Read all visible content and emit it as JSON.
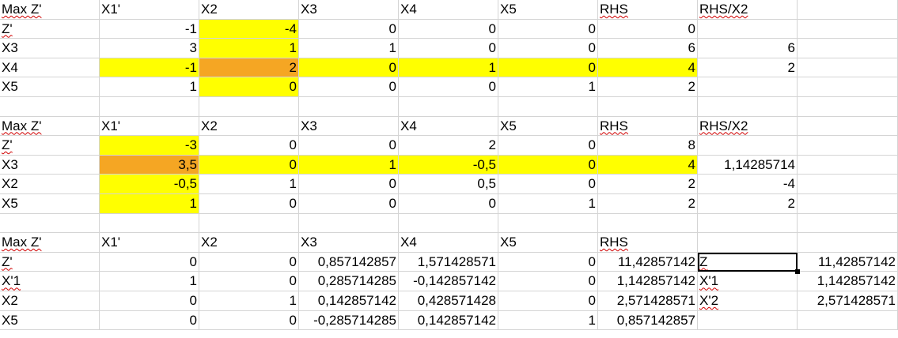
{
  "blocks": [
    {
      "header": [
        "Max Z'",
        "X1'",
        "X2",
        "X3",
        "X4",
        "X5",
        "RHS",
        "RHS/X2",
        ""
      ],
      "rows": [
        [
          "Z'",
          "-1",
          "-4",
          "0",
          "0",
          "0",
          "0",
          "",
          ""
        ],
        [
          "X3",
          "3",
          "1",
          "1",
          "0",
          "0",
          "6",
          "6",
          ""
        ],
        [
          "X4",
          "-1",
          "2",
          "0",
          "1",
          "0",
          "4",
          "2",
          ""
        ],
        [
          "X5",
          "1",
          "0",
          "0",
          "0",
          "1",
          "2",
          "",
          ""
        ]
      ]
    },
    {
      "header": [
        "Max Z'",
        "X1'",
        "X2",
        "X3",
        "X4",
        "X5",
        "RHS",
        "RHS/X2",
        ""
      ],
      "rows": [
        [
          "Z'",
          "-3",
          "0",
          "0",
          "2",
          "0",
          "8",
          "",
          ""
        ],
        [
          "X3",
          "3,5",
          "0",
          "1",
          "-0,5",
          "0",
          "4",
          "1,14285714",
          ""
        ],
        [
          "X2",
          "-0,5",
          "1",
          "0",
          "0,5",
          "0",
          "2",
          "-4",
          ""
        ],
        [
          "X5",
          "1",
          "0",
          "0",
          "0",
          "1",
          "2",
          "2",
          ""
        ]
      ]
    },
    {
      "header": [
        "Max Z'",
        "X1'",
        "X2",
        "X3",
        "X4",
        "X5",
        "RHS",
        "",
        ""
      ],
      "rows": [
        [
          "Z'",
          "0",
          "0",
          "0,857142857",
          "1,571428571",
          "0",
          "11,42857142",
          "Z",
          "11,42857142"
        ],
        [
          "X'1",
          "1",
          "0",
          "0,285714285",
          "-0,142857142",
          "0",
          "1,142857142",
          "X'1",
          "1,142857142"
        ],
        [
          "X2",
          "0",
          "1",
          "0,142857142",
          "0,428571428",
          "0",
          "2,571428571",
          "X'2",
          "2,571428571"
        ],
        [
          "X5",
          "0",
          "0",
          "-0,285714285",
          "0,142857142",
          "1",
          "0,857142857",
          "",
          ""
        ]
      ]
    }
  ],
  "colors": {
    "highlight": "#ffff00",
    "pivot": "#f5a623",
    "gridline": "#d4d4d4"
  }
}
